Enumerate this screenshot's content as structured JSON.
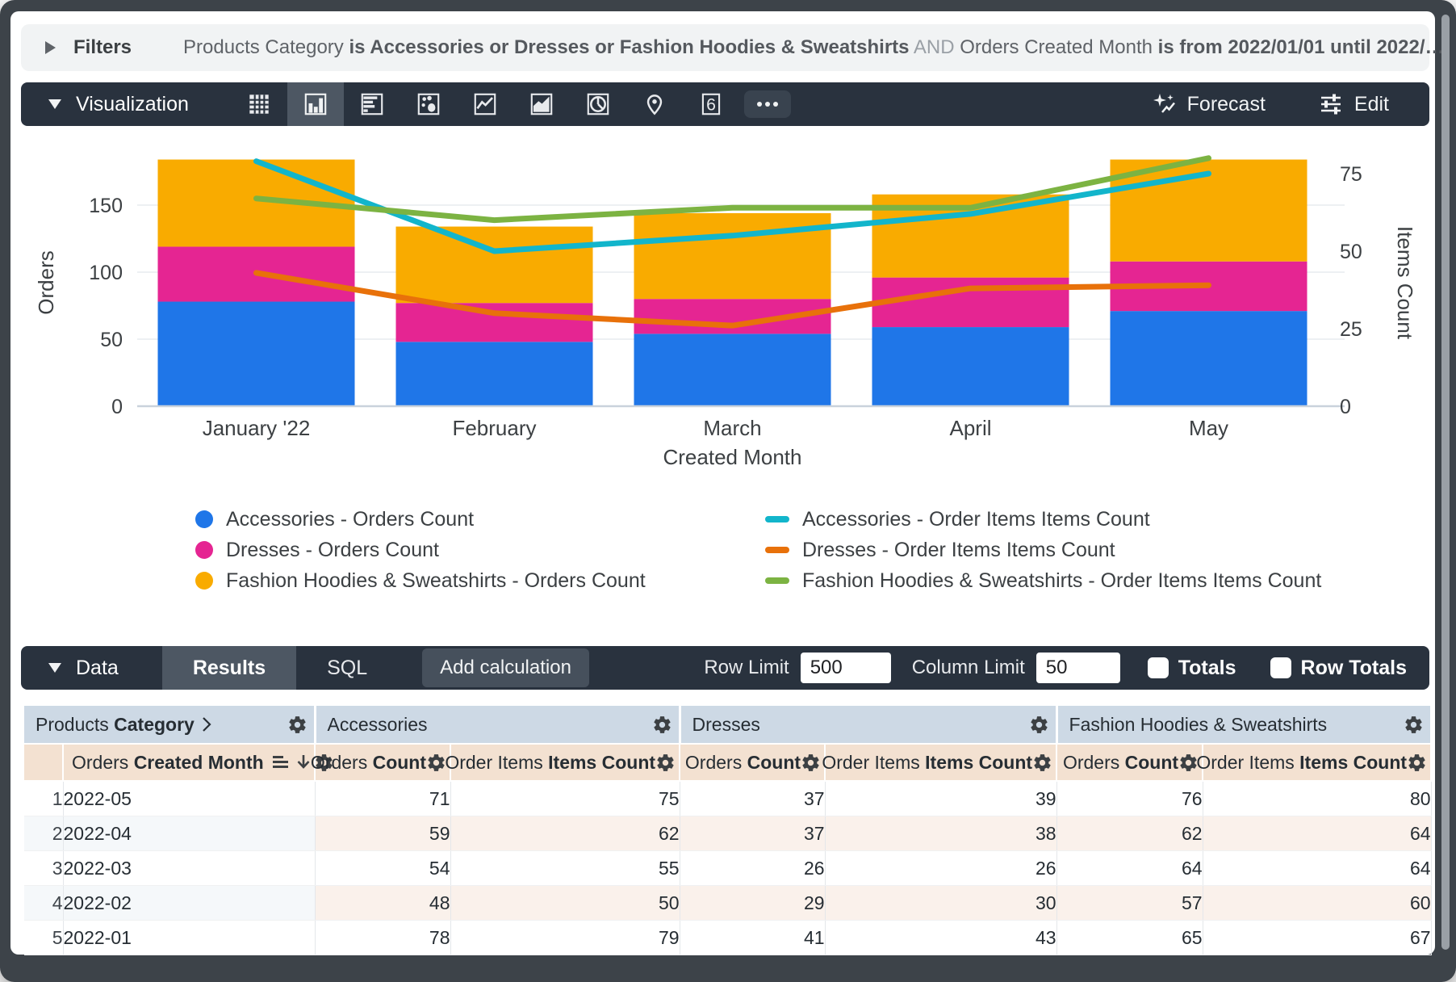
{
  "filters": {
    "label": "Filters",
    "segments": [
      {
        "text": "Products Category",
        "style": "normal"
      },
      {
        "text": " is Accessories or Dresses or Fashion Hoodies & Sweatshirts",
        "style": "bold"
      },
      {
        "text": " AND ",
        "style": "and"
      },
      {
        "text": "Orders Created Month",
        "style": "normal"
      },
      {
        "text": " is from 2022/01/01 until 2022/…",
        "style": "bold"
      }
    ]
  },
  "viz_toolbar": {
    "title": "Visualization",
    "icons": [
      "table-chart",
      "column-chart",
      "bar-chart",
      "scatter-chart",
      "line-chart",
      "area-chart",
      "pie-chart",
      "map-chart",
      "single-value",
      "more-options"
    ],
    "active_icon": "column-chart",
    "single_value_glyph": "6",
    "forecast_label": "Forecast",
    "edit_label": "Edit"
  },
  "chart_data": {
    "type": "combo",
    "categories": [
      "January '22",
      "February",
      "March",
      "April",
      "May"
    ],
    "x_axis_label": "Created Month",
    "left_axis": {
      "label": "Orders",
      "ticks": [
        0,
        50,
        100,
        150
      ],
      "max": 187
    },
    "right_axis": {
      "label": "Items Count",
      "ticks": [
        0,
        25,
        50,
        75
      ],
      "max": 81
    },
    "bar_series": [
      {
        "name": "Accessories - Orders Count",
        "color": "#1f76e8",
        "values": [
          78,
          48,
          54,
          59,
          71
        ]
      },
      {
        "name": "Dresses - Orders Count",
        "color": "#e52592",
        "values": [
          41,
          29,
          26,
          37,
          37
        ]
      },
      {
        "name": "Fashion Hoodies & Sweatshirts - Orders Count",
        "color": "#f9ab00",
        "values": [
          65,
          57,
          64,
          62,
          76
        ]
      }
    ],
    "line_series": [
      {
        "name": "Accessories - Order Items Items Count",
        "color": "#12b5cb",
        "values": [
          79,
          50,
          55,
          62,
          75
        ]
      },
      {
        "name": "Dresses - Order Items Items Count",
        "color": "#e8710a",
        "values": [
          43,
          30,
          26,
          38,
          39
        ]
      },
      {
        "name": "Fashion Hoodies & Sweatshirts - Order Items Items Count",
        "color": "#7cb342",
        "values": [
          67,
          60,
          64,
          64,
          80
        ]
      }
    ],
    "legend_position": "bottom",
    "grid": true
  },
  "data_section": {
    "title": "Data",
    "tabs": [
      {
        "label": "Results",
        "active": true
      },
      {
        "label": "SQL",
        "active": false
      }
    ],
    "add_calculation_label": "Add calculation",
    "row_limit_label": "Row Limit",
    "row_limit_value": "500",
    "column_limit_label": "Column Limit",
    "column_limit_value": "50",
    "totals_label": "Totals",
    "row_totals_label": "Row Totals",
    "totals_checked": false,
    "row_totals_checked": false
  },
  "table": {
    "group_columns": [
      {
        "prefix": "Products ",
        "bold": "Category"
      },
      {
        "label": "Accessories"
      },
      {
        "label": "Dresses"
      },
      {
        "label": "Fashion Hoodies & Sweatshirts"
      }
    ],
    "dimension_column": {
      "prefix": "Orders ",
      "bold": "Created Month"
    },
    "measure_columns": [
      {
        "prefix": "Orders ",
        "bold": "Count"
      },
      {
        "prefix": "Order Items ",
        "bold": "Items Count"
      }
    ],
    "rows": [
      {
        "num": "1",
        "month": "2022-05",
        "values": [
          71,
          75,
          37,
          39,
          76,
          80
        ]
      },
      {
        "num": "2",
        "month": "2022-04",
        "values": [
          59,
          62,
          37,
          38,
          62,
          64
        ]
      },
      {
        "num": "3",
        "month": "2022-03",
        "values": [
          54,
          55,
          26,
          26,
          64,
          64
        ]
      },
      {
        "num": "4",
        "month": "2022-02",
        "values": [
          48,
          50,
          29,
          30,
          57,
          60
        ]
      },
      {
        "num": "5",
        "month": "2022-01",
        "values": [
          78,
          79,
          41,
          43,
          65,
          67
        ]
      }
    ]
  }
}
